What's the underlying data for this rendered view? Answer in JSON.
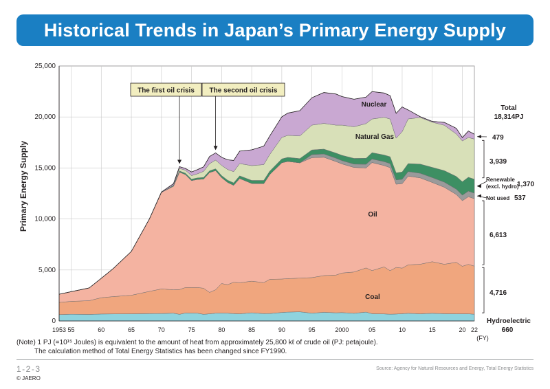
{
  "title": "Historical Trends in Japan’s Primary Energy Supply",
  "note_line1": "(Note) 1 PJ (=10¹⁵ Joules) is equivalent to the amount of heat from approximately 25,800 kℓ of crude oil (PJ: petajoule).",
  "note_line2": "The calculation method of Total Energy Statistics has been changed since FY1990.",
  "figure_number": "1-2-3",
  "source": "Source: Agency for Natural Resources and Energy, Total Energy Statistics",
  "copyright": "© JAERO",
  "colors": {
    "title_banner": "#1a7fc3",
    "hydroelectric": "#8fd3de",
    "coal": "#f0a67e",
    "oil": "#f4b3a1",
    "not_used": "#9a9a9a",
    "renewable": "#3d8f63",
    "natural_gas": "#d8e0b8",
    "nuclear": "#c9a8d2",
    "annotation_box": "#f2eec0"
  },
  "chart_data": {
    "type": "area",
    "ylabel": "Primary Energy Supply",
    "ylim": [
      0,
      25000
    ],
    "yticks": [
      0,
      5000,
      10000,
      15000,
      20000,
      25000
    ],
    "ytick_labels": [
      "0",
      "5,000",
      "10,000",
      "15,000",
      "20,000",
      "25,000"
    ],
    "xtick_labels": [
      {
        "year": 1953,
        "label": "1953"
      },
      {
        "year": 1955,
        "label": "55"
      },
      {
        "year": 1960,
        "label": "60"
      },
      {
        "year": 1965,
        "label": "65"
      },
      {
        "year": 1970,
        "label": "70"
      },
      {
        "year": 1975,
        "label": "75"
      },
      {
        "year": 1980,
        "label": "80"
      },
      {
        "year": 1985,
        "label": "85"
      },
      {
        "year": 1990,
        "label": "90"
      },
      {
        "year": 1995,
        "label": "95"
      },
      {
        "year": 2000,
        "label": "2000"
      },
      {
        "year": 2005,
        "label": "05"
      },
      {
        "year": 2010,
        "label": "10"
      },
      {
        "year": 2015,
        "label": "15"
      },
      {
        "year": 2020,
        "label": "20"
      },
      {
        "year": 2022,
        "label": "22"
      }
    ],
    "x_unit": "(FY)",
    "x": [
      1953,
      1955,
      1958,
      1960,
      1962,
      1965,
      1968,
      1970,
      1972,
      1973,
      1974,
      1975,
      1976,
      1977,
      1978,
      1979,
      1980,
      1981,
      1982,
      1983,
      1985,
      1987,
      1988,
      1990,
      1991,
      1993,
      1995,
      1997,
      1999,
      2000,
      2002,
      2004,
      2005,
      2007,
      2008,
      2009,
      2010,
      2011,
      2013,
      2015,
      2017,
      2019,
      2020,
      2021,
      2022
    ],
    "series": [
      {
        "name": "Hydroelectric",
        "values": [
          620,
          660,
          640,
          680,
          690,
          700,
          720,
          730,
          760,
          650,
          780,
          770,
          760,
          650,
          700,
          760,
          770,
          760,
          720,
          700,
          800,
          720,
          730,
          830,
          870,
          900,
          760,
          850,
          800,
          820,
          750,
          870,
          710,
          690,
          660,
          680,
          710,
          750,
          700,
          750,
          710,
          700,
          700,
          700,
          660
        ]
      },
      {
        "name": "Coal",
        "values": [
          1200,
          1260,
          1350,
          1600,
          1700,
          1820,
          2180,
          2410,
          2300,
          2430,
          2500,
          2510,
          2520,
          2560,
          2100,
          2300,
          2900,
          2800,
          3080,
          3050,
          3100,
          3040,
          3350,
          3280,
          3280,
          3300,
          3490,
          3600,
          3700,
          3880,
          4050,
          4330,
          4230,
          4610,
          4270,
          4570,
          4470,
          4750,
          4860,
          5060,
          4850,
          5050,
          4660,
          4850,
          4716
        ]
      },
      {
        "name": "Oil",
        "values": [
          800,
          950,
          1250,
          1900,
          2750,
          4300,
          7100,
          9460,
          10150,
          11510,
          11070,
          10480,
          10600,
          10700,
          11750,
          11680,
          10380,
          10020,
          9500,
          10220,
          9580,
          9700,
          10270,
          11400,
          11490,
          11300,
          11760,
          11600,
          11130,
          10700,
          10250,
          9800,
          10590,
          9940,
          10100,
          8160,
          8280,
          8700,
          8470,
          7770,
          7550,
          6650,
          6430,
          6630,
          6613
        ]
      },
      {
        "name": "Not used",
        "values": [
          0,
          0,
          0,
          0,
          0,
          0,
          0,
          0,
          0,
          0,
          0,
          0,
          0,
          0,
          0,
          0,
          0,
          0,
          0,
          0,
          0,
          0,
          0,
          0,
          0,
          0,
          300,
          320,
          330,
          320,
          330,
          360,
          350,
          380,
          400,
          420,
          430,
          450,
          450,
          480,
          500,
          520,
          540,
          550,
          537
        ]
      },
      {
        "name": "Renewable (excl. hydro)",
        "values": [
          0,
          0,
          0,
          0,
          0,
          0,
          0,
          0,
          100,
          120,
          130,
          140,
          150,
          160,
          170,
          180,
          200,
          220,
          240,
          260,
          300,
          320,
          340,
          380,
          400,
          420,
          460,
          480,
          500,
          520,
          560,
          590,
          620,
          650,
          670,
          690,
          720,
          780,
          900,
          1000,
          1130,
          1250,
          1320,
          1360,
          1370
        ]
      },
      {
        "name": "Natural Gas",
        "values": [
          0,
          0,
          0,
          0,
          0,
          0,
          0,
          0,
          0,
          250,
          300,
          350,
          400,
          600,
          700,
          850,
          1000,
          1050,
          1100,
          1200,
          1450,
          1550,
          1630,
          2100,
          2160,
          2220,
          2430,
          2520,
          2740,
          2960,
          3100,
          3400,
          3300,
          3700,
          3700,
          3400,
          3950,
          4380,
          4570,
          4430,
          4450,
          4160,
          4000,
          3900,
          3939
        ]
      },
      {
        "name": "Nuclear",
        "values": [
          0,
          0,
          0,
          0,
          0,
          0,
          0,
          40,
          150,
          170,
          170,
          360,
          410,
          440,
          710,
          710,
          800,
          950,
          1100,
          1220,
          1550,
          1810,
          1820,
          2020,
          2180,
          2480,
          2690,
          3030,
          3050,
          2800,
          2700,
          2600,
          2690,
          2380,
          2290,
          2440,
          2420,
          880,
          80,
          80,
          280,
          560,
          330,
          630,
          479
        ]
      }
    ],
    "annotations": [
      {
        "label": "The first oil crisis",
        "year": 1973
      },
      {
        "label": "The second oil crisis",
        "year": 1979
      }
    ],
    "series_labels": {
      "nuclear": "Nuclear",
      "natural_gas": "Natural Gas",
      "oil": "Oil",
      "coal": "Coal"
    },
    "right_labels": [
      {
        "key": "total",
        "line1": "Total",
        "line2": "18,314PJ"
      },
      {
        "key": "nuclear",
        "value": "479"
      },
      {
        "key": "natural_gas",
        "value": "3,939"
      },
      {
        "key": "renewable",
        "line1": "Renewable",
        "line2": "(excl. hydro)",
        "value": "1,370"
      },
      {
        "key": "not_used",
        "line1": "Not used",
        "value": "537"
      },
      {
        "key": "oil",
        "value": "6,613"
      },
      {
        "key": "coal",
        "value": "4,716"
      },
      {
        "key": "hydro",
        "line1": "Hydroelectric",
        "value": "660"
      }
    ]
  }
}
